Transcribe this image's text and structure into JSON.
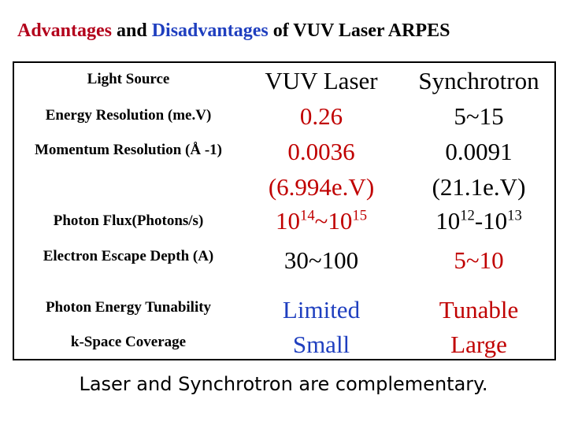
{
  "title": {
    "part1": "Advantages",
    "part2": " and ",
    "part3": "Disadvantages",
    "part4": " of VUV Laser ARPES"
  },
  "columns": {
    "label": "Light Source",
    "laser": "VUV Laser",
    "synchrotron": "Synchrotron"
  },
  "rows": {
    "energy": {
      "label": "Energy Resolution (me.V)",
      "laser": "0.26",
      "sync": "5~15"
    },
    "momentum": {
      "label": "Momentum Resolution (Å -1)",
      "laser_value": "0.0036",
      "laser_note": "(6.994e.V)",
      "sync_value": "0.0091",
      "sync_note": "(21.1e.V)"
    },
    "flux": {
      "label": "Photon Flux(Photons/s)",
      "laser": {
        "base1": "10",
        "exp1": "14",
        "sep": "~",
        "base2": "10",
        "exp2": "15"
      },
      "sync": {
        "base1": "10",
        "exp1": "12",
        "sep": "-",
        "base2": "10",
        "exp2": "13"
      }
    },
    "escape": {
      "label": "Electron Escape Depth (A)",
      "laser": "30~100",
      "sync": "5~10"
    },
    "tunability": {
      "label": "Photon Energy Tunability",
      "laser": "Limited",
      "sync": "Tunable"
    },
    "kspace": {
      "label": "k-Space Coverage",
      "laser": "Small",
      "sync": "Large"
    }
  },
  "footer": "Laser and Synchrotron are complementary.",
  "colors": {
    "advantage_red": "#b3001b",
    "disadvantage_blue": "#1f3fbf",
    "value_red": "#c00000"
  }
}
